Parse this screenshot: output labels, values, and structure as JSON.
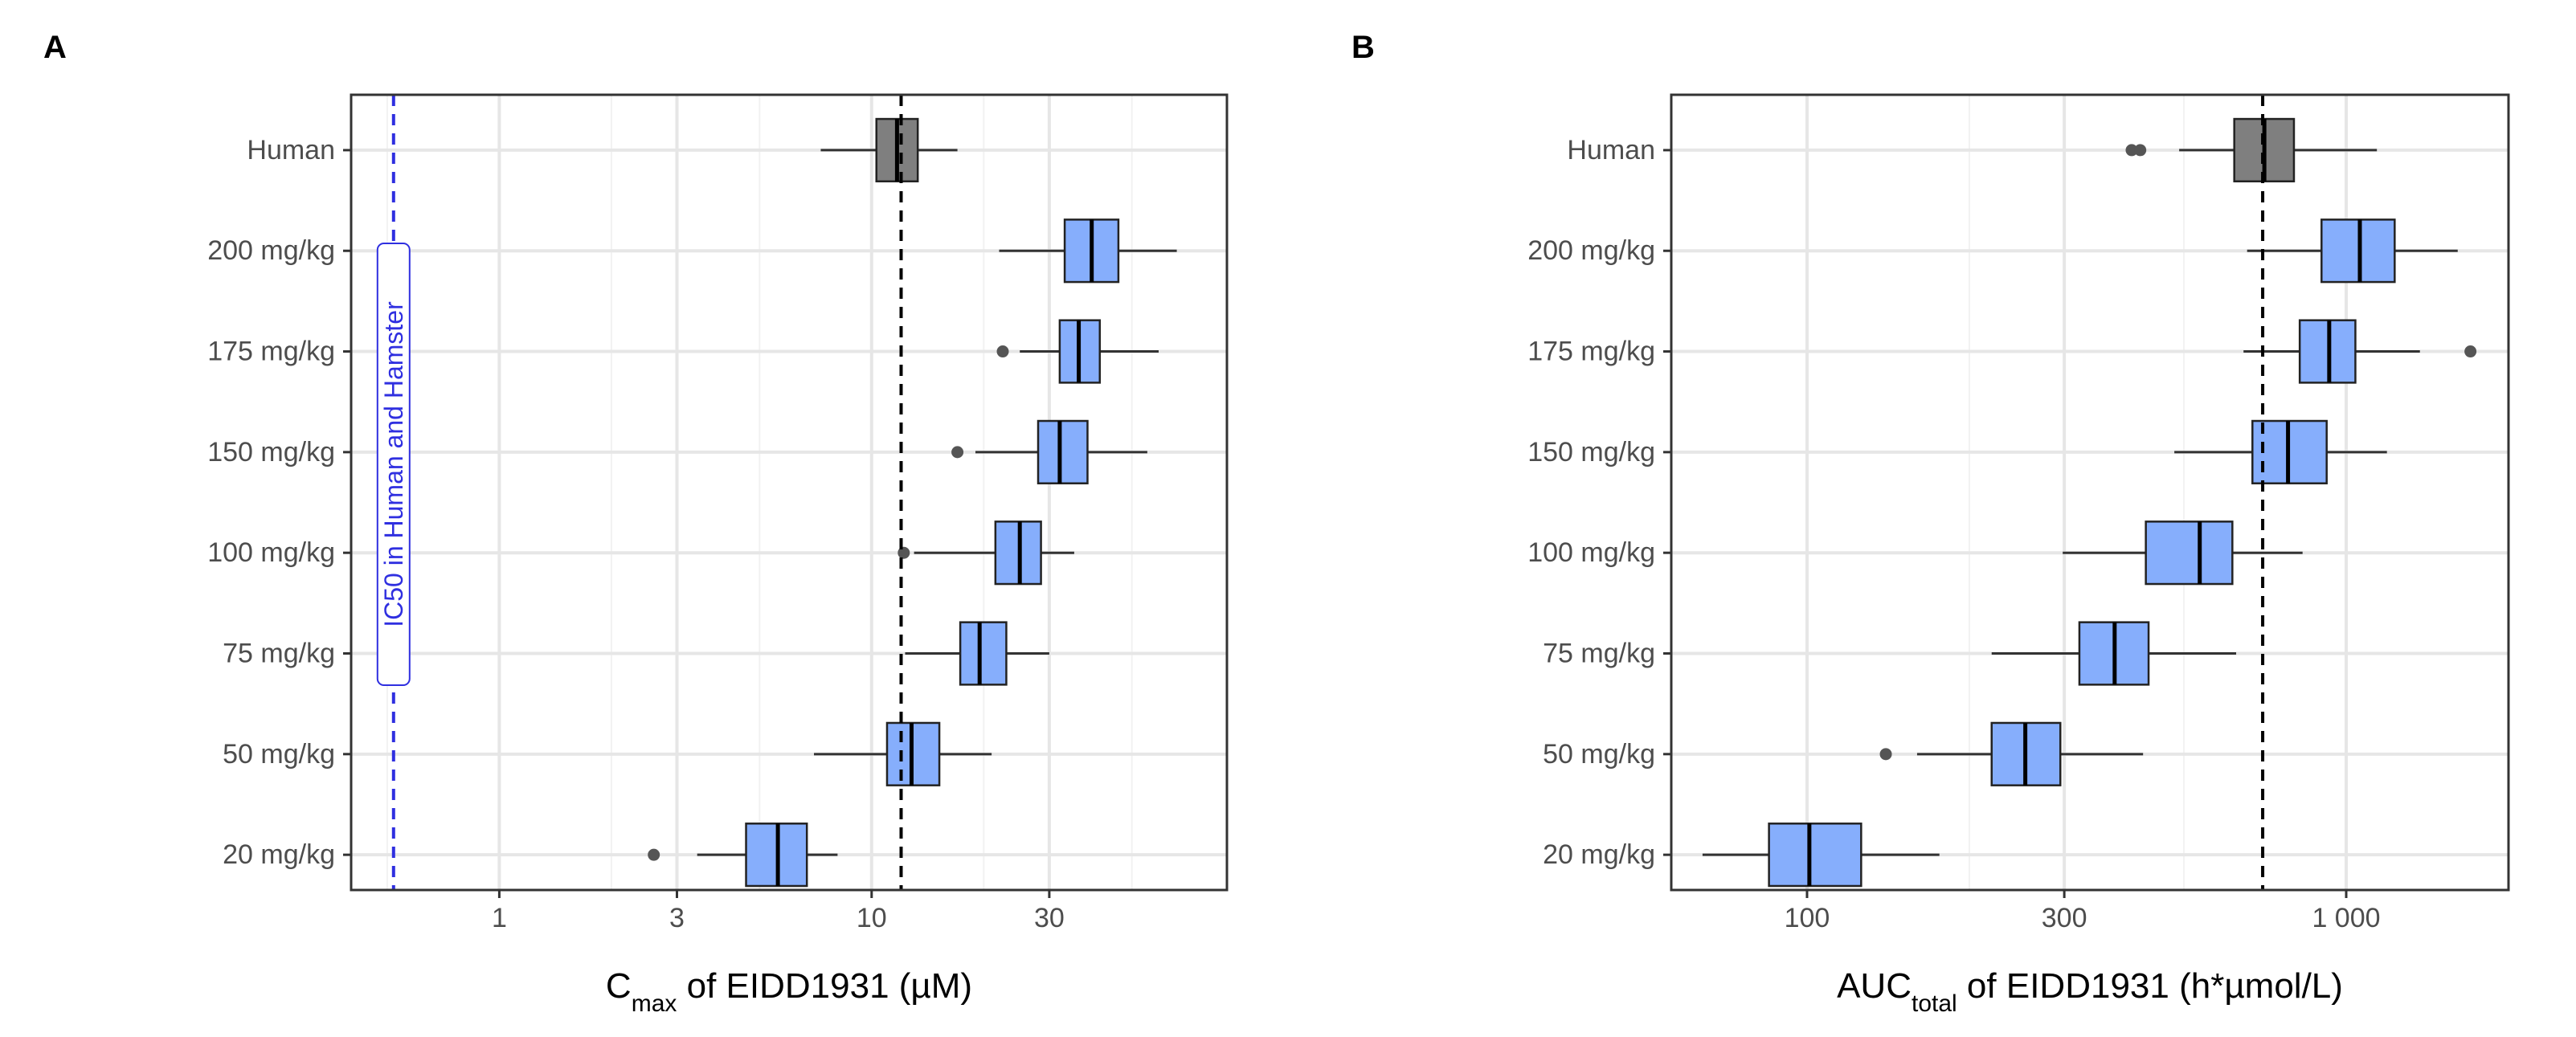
{
  "figure": {
    "panels": [
      {
        "label": "A"
      },
      {
        "label": "B"
      }
    ]
  },
  "colors": {
    "human_box": "#7f7f7f",
    "dose_box": "#86aefc",
    "box_edge": "#222222",
    "whisker": "#333333",
    "outlier": "#555555",
    "reference_line": "#000000",
    "ic50_line": "#2f2fe0",
    "grid_major": "#e6e6e6",
    "grid_minor": "#f2f2f2",
    "axis_text": "#4d4d4d"
  },
  "chart_data": [
    {
      "type": "boxplot",
      "panel": "A",
      "orientation": "horizontal",
      "x_scale": "log10",
      "xlabel_main": "C",
      "xlabel_sub": "max",
      "xlabel_rest": " of EIDD1931 (µM)",
      "xlim": [
        0.4,
        90
      ],
      "xticks": [
        1,
        3,
        10,
        30
      ],
      "xtick_labels": [
        "1",
        "3",
        "10",
        "30"
      ],
      "minor_gridlines": [
        0.5,
        2,
        5,
        20,
        50
      ],
      "grid": true,
      "categories": [
        "Human",
        "200 mg/kg",
        "175 mg/kg",
        "150 mg/kg",
        "100 mg/kg",
        "75 mg/kg",
        "50 mg/kg",
        "20 mg/kg"
      ],
      "boxes": [
        {
          "group": "Human",
          "whisker_low": 7.3,
          "q1": 10.3,
          "median": 11.7,
          "q3": 13.3,
          "whisker_high": 17.0,
          "outliers": [],
          "fill": "human"
        },
        {
          "group": "200 mg/kg",
          "whisker_low": 22.0,
          "q1": 33.0,
          "median": 39.0,
          "q3": 46.0,
          "whisker_high": 66.0,
          "outliers": [],
          "fill": "dose"
        },
        {
          "group": "175 mg/kg",
          "whisker_low": 25.0,
          "q1": 32.0,
          "median": 36.0,
          "q3": 41.0,
          "whisker_high": 59.0,
          "outliers": [
            22.5
          ],
          "fill": "dose"
        },
        {
          "group": "150 mg/kg",
          "whisker_low": 19.0,
          "q1": 28.0,
          "median": 32.0,
          "q3": 38.0,
          "whisker_high": 55.0,
          "outliers": [
            17.0
          ],
          "fill": "dose"
        },
        {
          "group": "100 mg/kg",
          "whisker_low": 13.0,
          "q1": 21.5,
          "median": 25.0,
          "q3": 28.5,
          "whisker_high": 35.0,
          "outliers": [
            12.2
          ],
          "fill": "dose"
        },
        {
          "group": "75 mg/kg",
          "whisker_low": 12.3,
          "q1": 17.3,
          "median": 19.5,
          "q3": 23.0,
          "whisker_high": 30.0,
          "outliers": [],
          "fill": "dose"
        },
        {
          "group": "50 mg/kg",
          "whisker_low": 7.0,
          "q1": 11.0,
          "median": 12.8,
          "q3": 15.2,
          "whisker_high": 21.0,
          "outliers": [],
          "fill": "dose"
        },
        {
          "group": "20 mg/kg",
          "whisker_low": 3.4,
          "q1": 4.6,
          "median": 5.6,
          "q3": 6.7,
          "whisker_high": 8.1,
          "outliers": [
            2.6
          ],
          "fill": "dose"
        }
      ],
      "reference_lines": [
        {
          "x": 12.0,
          "style": "dashed",
          "color": "reference_line"
        },
        {
          "x": 0.52,
          "style": "dashed",
          "color": "ic50_line",
          "label": "IC50 in Human and Hamster"
        }
      ]
    },
    {
      "type": "boxplot",
      "panel": "B",
      "orientation": "horizontal",
      "x_scale": "log10",
      "xlabel_main": "AUC",
      "xlabel_sub": "total",
      "xlabel_rest": " of EIDD1931 (h*µmol/L)",
      "xlim": [
        56,
        2000
      ],
      "xticks": [
        100,
        300,
        1000
      ],
      "xtick_labels": [
        "100",
        "300",
        "1 000"
      ],
      "minor_gridlines": [
        200,
        500
      ],
      "grid": true,
      "categories": [
        "Human",
        "200 mg/kg",
        "175 mg/kg",
        "150 mg/kg",
        "100 mg/kg",
        "75 mg/kg",
        "50 mg/kg",
        "20 mg/kg"
      ],
      "boxes": [
        {
          "group": "Human",
          "whisker_low": 490,
          "q1": 620,
          "median": 705,
          "q3": 800,
          "whisker_high": 1140,
          "outliers": [
            400,
            415
          ],
          "fill": "human"
        },
        {
          "group": "200 mg/kg",
          "whisker_low": 655,
          "q1": 900,
          "median": 1060,
          "q3": 1230,
          "whisker_high": 1610,
          "outliers": [],
          "fill": "dose"
        },
        {
          "group": "175 mg/kg",
          "whisker_low": 645,
          "q1": 820,
          "median": 930,
          "q3": 1040,
          "whisker_high": 1370,
          "outliers": [
            1700
          ],
          "fill": "dose"
        },
        {
          "group": "150 mg/kg",
          "whisker_low": 480,
          "q1": 670,
          "median": 780,
          "q3": 920,
          "whisker_high": 1190,
          "outliers": [],
          "fill": "dose"
        },
        {
          "group": "100 mg/kg",
          "whisker_low": 298,
          "q1": 425,
          "median": 535,
          "q3": 615,
          "whisker_high": 830,
          "outliers": [],
          "fill": "dose"
        },
        {
          "group": "75 mg/kg",
          "whisker_low": 220,
          "q1": 320,
          "median": 372,
          "q3": 430,
          "whisker_high": 625,
          "outliers": [],
          "fill": "dose"
        },
        {
          "group": "50 mg/kg",
          "whisker_low": 160,
          "q1": 220,
          "median": 254,
          "q3": 295,
          "whisker_high": 420,
          "outliers": [
            140
          ],
          "fill": "dose"
        },
        {
          "group": "20 mg/kg",
          "whisker_low": 64,
          "q1": 85,
          "median": 101,
          "q3": 126,
          "whisker_high": 176,
          "outliers": [],
          "fill": "dose"
        }
      ],
      "reference_lines": [
        {
          "x": 700,
          "style": "dashed",
          "color": "reference_line"
        }
      ]
    }
  ]
}
